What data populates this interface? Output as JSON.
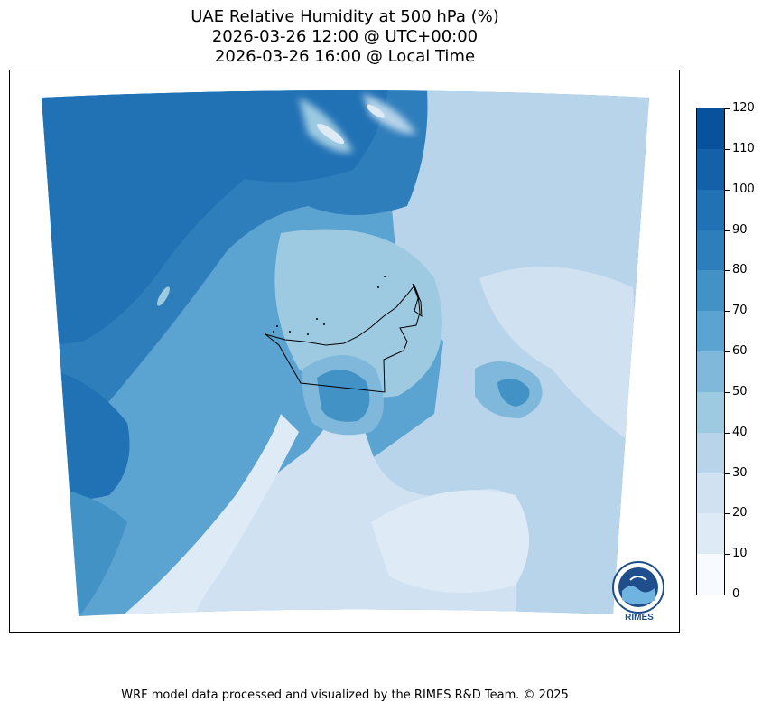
{
  "title": {
    "line1": "UAE Relative Humidity at 500 hPa (%)",
    "line2": "2026-03-26 12:00 @ UTC+00:00",
    "line3": "2026-03-26 16:00 @ Local Time"
  },
  "colorbar": {
    "ticks": [
      "0",
      "10",
      "20",
      "30",
      "40",
      "50",
      "60",
      "70",
      "80",
      "90",
      "100",
      "110",
      "120"
    ],
    "colors": [
      "#f7fbff",
      "#deebf7",
      "#d0e1f2",
      "#b7d4ea",
      "#9ecae1",
      "#7fb8da",
      "#5ba3d0",
      "#4292c6",
      "#2f7ebc",
      "#2171b5",
      "#1561a9",
      "#08519c",
      "#08306b"
    ]
  },
  "map": {
    "colors": {
      "background": "#5ba3d0",
      "very_dry": "#deebf7",
      "dry": "#d0e1f2",
      "mid_dry": "#b7d4ea",
      "mid": "#9ecae1",
      "moist": "#7fb8da",
      "wet": "#4292c6",
      "very_wet": "#2171b5",
      "saturated": "#1561a9"
    }
  },
  "logo": {
    "text": "RIMES",
    "ring_text": "Regional Integrated Multi-Hazard Early Warning System"
  },
  "footer": "WRF model data processed and visualized by the RIMES R&D Team. © 2025"
}
